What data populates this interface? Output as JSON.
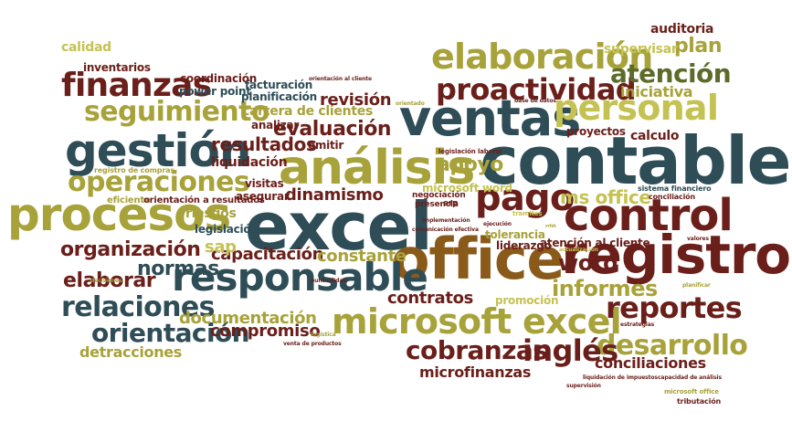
{
  "palette": {
    "maroon": "#6b1f1a",
    "olive": "#a8a23a",
    "teal": "#2e4d57",
    "lime": "#c4c252",
    "brown": "#8a5a1a",
    "darkolive": "#5c6b2a"
  },
  "words": [
    {
      "text": "excel",
      "color": "teal"
    },
    {
      "text": "contable",
      "color": "teal"
    },
    {
      "text": "office",
      "color": "brown"
    },
    {
      "text": "registro",
      "color": "maroon"
    },
    {
      "text": "ventas",
      "color": "teal"
    },
    {
      "text": "análisis",
      "color": "olive"
    },
    {
      "text": "procesos",
      "color": "olive"
    },
    {
      "text": "gestión",
      "color": "teal"
    },
    {
      "text": "control",
      "color": "maroon"
    },
    {
      "text": "pago",
      "color": "maroon"
    },
    {
      "text": "responsable",
      "color": "teal"
    },
    {
      "text": "microsoft excel",
      "color": "olive"
    },
    {
      "text": "elaboración",
      "color": "olive"
    },
    {
      "text": "personal",
      "color": "lime"
    },
    {
      "text": "proactividad",
      "color": "maroon"
    },
    {
      "text": "finanzas",
      "color": "maroon"
    },
    {
      "text": "operaciones",
      "color": "olive"
    },
    {
      "text": "seguimiento",
      "color": "olive"
    },
    {
      "text": "relaciones",
      "color": "teal"
    },
    {
      "text": "reportes",
      "color": "maroon"
    },
    {
      "text": "desarrollo",
      "color": "olive"
    },
    {
      "text": "inglés",
      "color": "maroon"
    },
    {
      "text": "cobranzas",
      "color": "maroon"
    },
    {
      "text": "atención",
      "color": "darkolive"
    },
    {
      "text": "orientación",
      "color": "teal"
    },
    {
      "text": "organización",
      "color": "maroon"
    },
    {
      "text": "evaluación",
      "color": "maroon"
    },
    {
      "text": "resultados",
      "color": "maroon"
    },
    {
      "text": "apoyo",
      "color": "olive"
    },
    {
      "text": "informes",
      "color": "olive"
    },
    {
      "text": "word",
      "color": "maroon"
    },
    {
      "text": "ms office",
      "color": "lime"
    },
    {
      "text": "plan",
      "color": "olive"
    },
    {
      "text": "supervisar",
      "color": "lime"
    },
    {
      "text": "iniciativa",
      "color": "olive"
    },
    {
      "text": "auditoria",
      "color": "maroon"
    },
    {
      "text": "calculo",
      "color": "maroon"
    },
    {
      "text": "proyectos",
      "color": "maroon"
    },
    {
      "text": "normas",
      "color": "teal"
    },
    {
      "text": "elaborar",
      "color": "maroon"
    },
    {
      "text": "capacitación",
      "color": "maroon"
    },
    {
      "text": "constante",
      "color": "olive"
    },
    {
      "text": "documentación",
      "color": "olive"
    },
    {
      "text": "compromiso",
      "color": "maroon"
    },
    {
      "text": "contratos",
      "color": "maroon"
    },
    {
      "text": "conciliaciones",
      "color": "maroon"
    },
    {
      "text": "microfinanzas",
      "color": "maroon"
    },
    {
      "text": "detracciones",
      "color": "olive"
    },
    {
      "text": "dinamismo",
      "color": "maroon"
    },
    {
      "text": "revisión",
      "color": "maroon"
    },
    {
      "text": "liquidación",
      "color": "maroon"
    },
    {
      "text": "cartera de clientes",
      "color": "olive"
    },
    {
      "text": "planificación",
      "color": "teal"
    },
    {
      "text": "facturación",
      "color": "teal"
    },
    {
      "text": "power point",
      "color": "teal"
    },
    {
      "text": "coordinación",
      "color": "maroon"
    },
    {
      "text": "inventarios",
      "color": "maroon"
    },
    {
      "text": "calidad",
      "color": "lime"
    },
    {
      "text": "analizar",
      "color": "maroon"
    },
    {
      "text": "emitir",
      "color": "maroon"
    },
    {
      "text": "visitas",
      "color": "maroon"
    },
    {
      "text": "asegurar",
      "color": "maroon"
    },
    {
      "text": "riesgos",
      "color": "olive"
    },
    {
      "text": "legislación",
      "color": "teal"
    },
    {
      "text": "sap",
      "color": "lime"
    },
    {
      "text": "promoción",
      "color": "lime"
    },
    {
      "text": "tolerancia",
      "color": "olive"
    },
    {
      "text": "liderazgo",
      "color": "maroon"
    },
    {
      "text": "atención al cliente",
      "color": "maroon"
    },
    {
      "text": "microsoft word",
      "color": "lime"
    },
    {
      "text": "negociación",
      "color": "maroon"
    },
    {
      "text": "presencia",
      "color": "maroon"
    },
    {
      "text": "erp",
      "color": "maroon"
    },
    {
      "text": "eficiente",
      "color": "olive"
    },
    {
      "text": "orientación a resultados",
      "color": "maroon"
    },
    {
      "text": "registro de compras",
      "color": "olive"
    },
    {
      "text": "legislación laboral",
      "color": "maroon"
    },
    {
      "text": "comunicación efectiva",
      "color": "maroon"
    },
    {
      "text": "implementación",
      "color": "maroon"
    },
    {
      "text": "ejecución",
      "color": "maroon"
    },
    {
      "text": "tramites",
      "color": "lime"
    },
    {
      "text": "sistema financiero",
      "color": "teal"
    },
    {
      "text": "conciliación",
      "color": "maroon"
    },
    {
      "text": "orientado",
      "color": "olive"
    },
    {
      "text": "base de datos",
      "color": "maroon"
    },
    {
      "text": "orientación al cliente",
      "color": "maroon"
    },
    {
      "text": "actualización",
      "color": "lime"
    },
    {
      "text": "valores",
      "color": "maroon"
    },
    {
      "text": "decisiones",
      "color": "olive"
    },
    {
      "text": "puntualidad",
      "color": "maroon"
    },
    {
      "text": "logística",
      "color": "olive"
    },
    {
      "text": "venta de productos",
      "color": "maroon"
    },
    {
      "text": "estrategias",
      "color": "maroon"
    },
    {
      "text": "planificar",
      "color": "olive"
    },
    {
      "text": "liquidación de impuestos",
      "color": "maroon"
    },
    {
      "text": "capacidad de análisis",
      "color": "maroon"
    },
    {
      "text": "supervisión",
      "color": "maroon"
    },
    {
      "text": "microsoft office",
      "color": "olive"
    },
    {
      "text": "tributación",
      "color": "maroon"
    },
    {
      "text": "rrhh",
      "color": "olive"
    }
  ]
}
